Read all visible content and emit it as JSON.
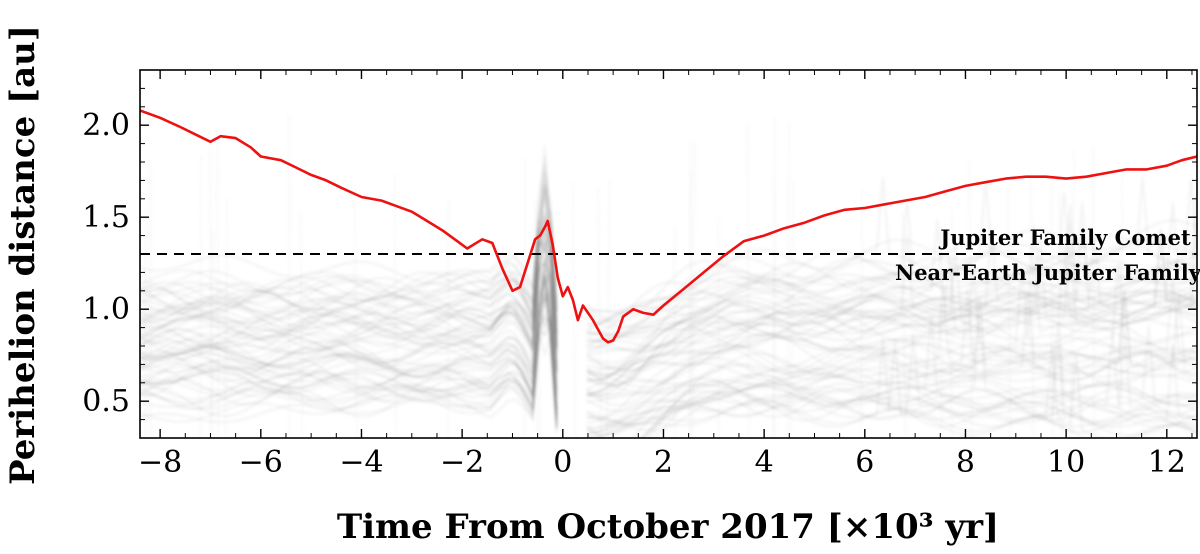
{
  "chart_data": {
    "type": "line",
    "title": "",
    "xlabel": "Time From October 2017 [×10³ yr]",
    "ylabel": "Perihelion distance [au]",
    "xlim": [
      -8.4,
      12.6
    ],
    "ylim": [
      0.3,
      2.3
    ],
    "grid": false,
    "x_ticks": [
      -8,
      -6,
      -4,
      -2,
      0,
      2,
      4,
      6,
      8,
      10,
      12
    ],
    "x_tick_labels": [
      "−8",
      "−6",
      "−4",
      "−2",
      "0",
      "2",
      "4",
      "6",
      "8",
      "10",
      "12"
    ],
    "y_ticks": [
      0.5,
      1.0,
      1.5,
      2.0
    ],
    "y_tick_labels": [
      "0.5",
      "1.0",
      "1.5",
      "2.0"
    ],
    "series": [
      {
        "color": "#ee1111",
        "x": [
          -8.4,
          -8.0,
          -7.6,
          -7.3,
          -7.0,
          -6.8,
          -6.5,
          -6.2,
          -6.0,
          -5.6,
          -5.3,
          -5.0,
          -4.7,
          -4.4,
          -4.0,
          -3.6,
          -3.3,
          -3.0,
          -2.7,
          -2.4,
          -2.1,
          -1.9,
          -1.6,
          -1.4,
          -1.2,
          -1.0,
          -0.85,
          -0.7,
          -0.55,
          -0.45,
          -0.35,
          -0.3,
          -0.2,
          -0.1,
          0.0,
          0.1,
          0.2,
          0.3,
          0.4,
          0.5,
          0.6,
          0.7,
          0.8,
          0.9,
          1.0,
          1.1,
          1.2,
          1.4,
          1.6,
          1.8,
          2.0,
          2.4,
          2.8,
          3.2,
          3.6,
          4.0,
          4.4,
          4.8,
          5.2,
          5.6,
          6.0,
          6.4,
          6.8,
          7.2,
          7.6,
          8.0,
          8.4,
          8.8,
          9.2,
          9.6,
          10.0,
          10.4,
          10.8,
          11.2,
          11.6,
          12.0,
          12.3,
          12.6
        ],
        "y": [
          2.08,
          2.04,
          1.99,
          1.95,
          1.91,
          1.94,
          1.93,
          1.88,
          1.83,
          1.81,
          1.77,
          1.73,
          1.7,
          1.66,
          1.61,
          1.59,
          1.56,
          1.53,
          1.48,
          1.43,
          1.37,
          1.33,
          1.38,
          1.36,
          1.22,
          1.1,
          1.12,
          1.25,
          1.38,
          1.4,
          1.45,
          1.48,
          1.35,
          1.17,
          1.07,
          1.12,
          1.05,
          0.94,
          1.02,
          0.98,
          0.94,
          0.89,
          0.84,
          0.82,
          0.83,
          0.88,
          0.96,
          1.0,
          0.98,
          0.97,
          1.02,
          1.11,
          1.2,
          1.29,
          1.37,
          1.4,
          1.44,
          1.47,
          1.51,
          1.54,
          1.55,
          1.57,
          1.59,
          1.61,
          1.64,
          1.67,
          1.69,
          1.71,
          1.72,
          1.72,
          1.71,
          1.72,
          1.74,
          1.76,
          1.76,
          1.78,
          1.81,
          1.83
        ]
      }
    ],
    "reference_line": {
      "y": 1.3,
      "style": "dashed",
      "color": "#000000"
    },
    "annotations": [
      {
        "text": "Jupiter Family Comet",
        "x": 7.5,
        "y": 1.35
      },
      {
        "text": "Near-Earth Jupiter Family Comet",
        "x": 6.6,
        "y": 1.16
      }
    ]
  }
}
